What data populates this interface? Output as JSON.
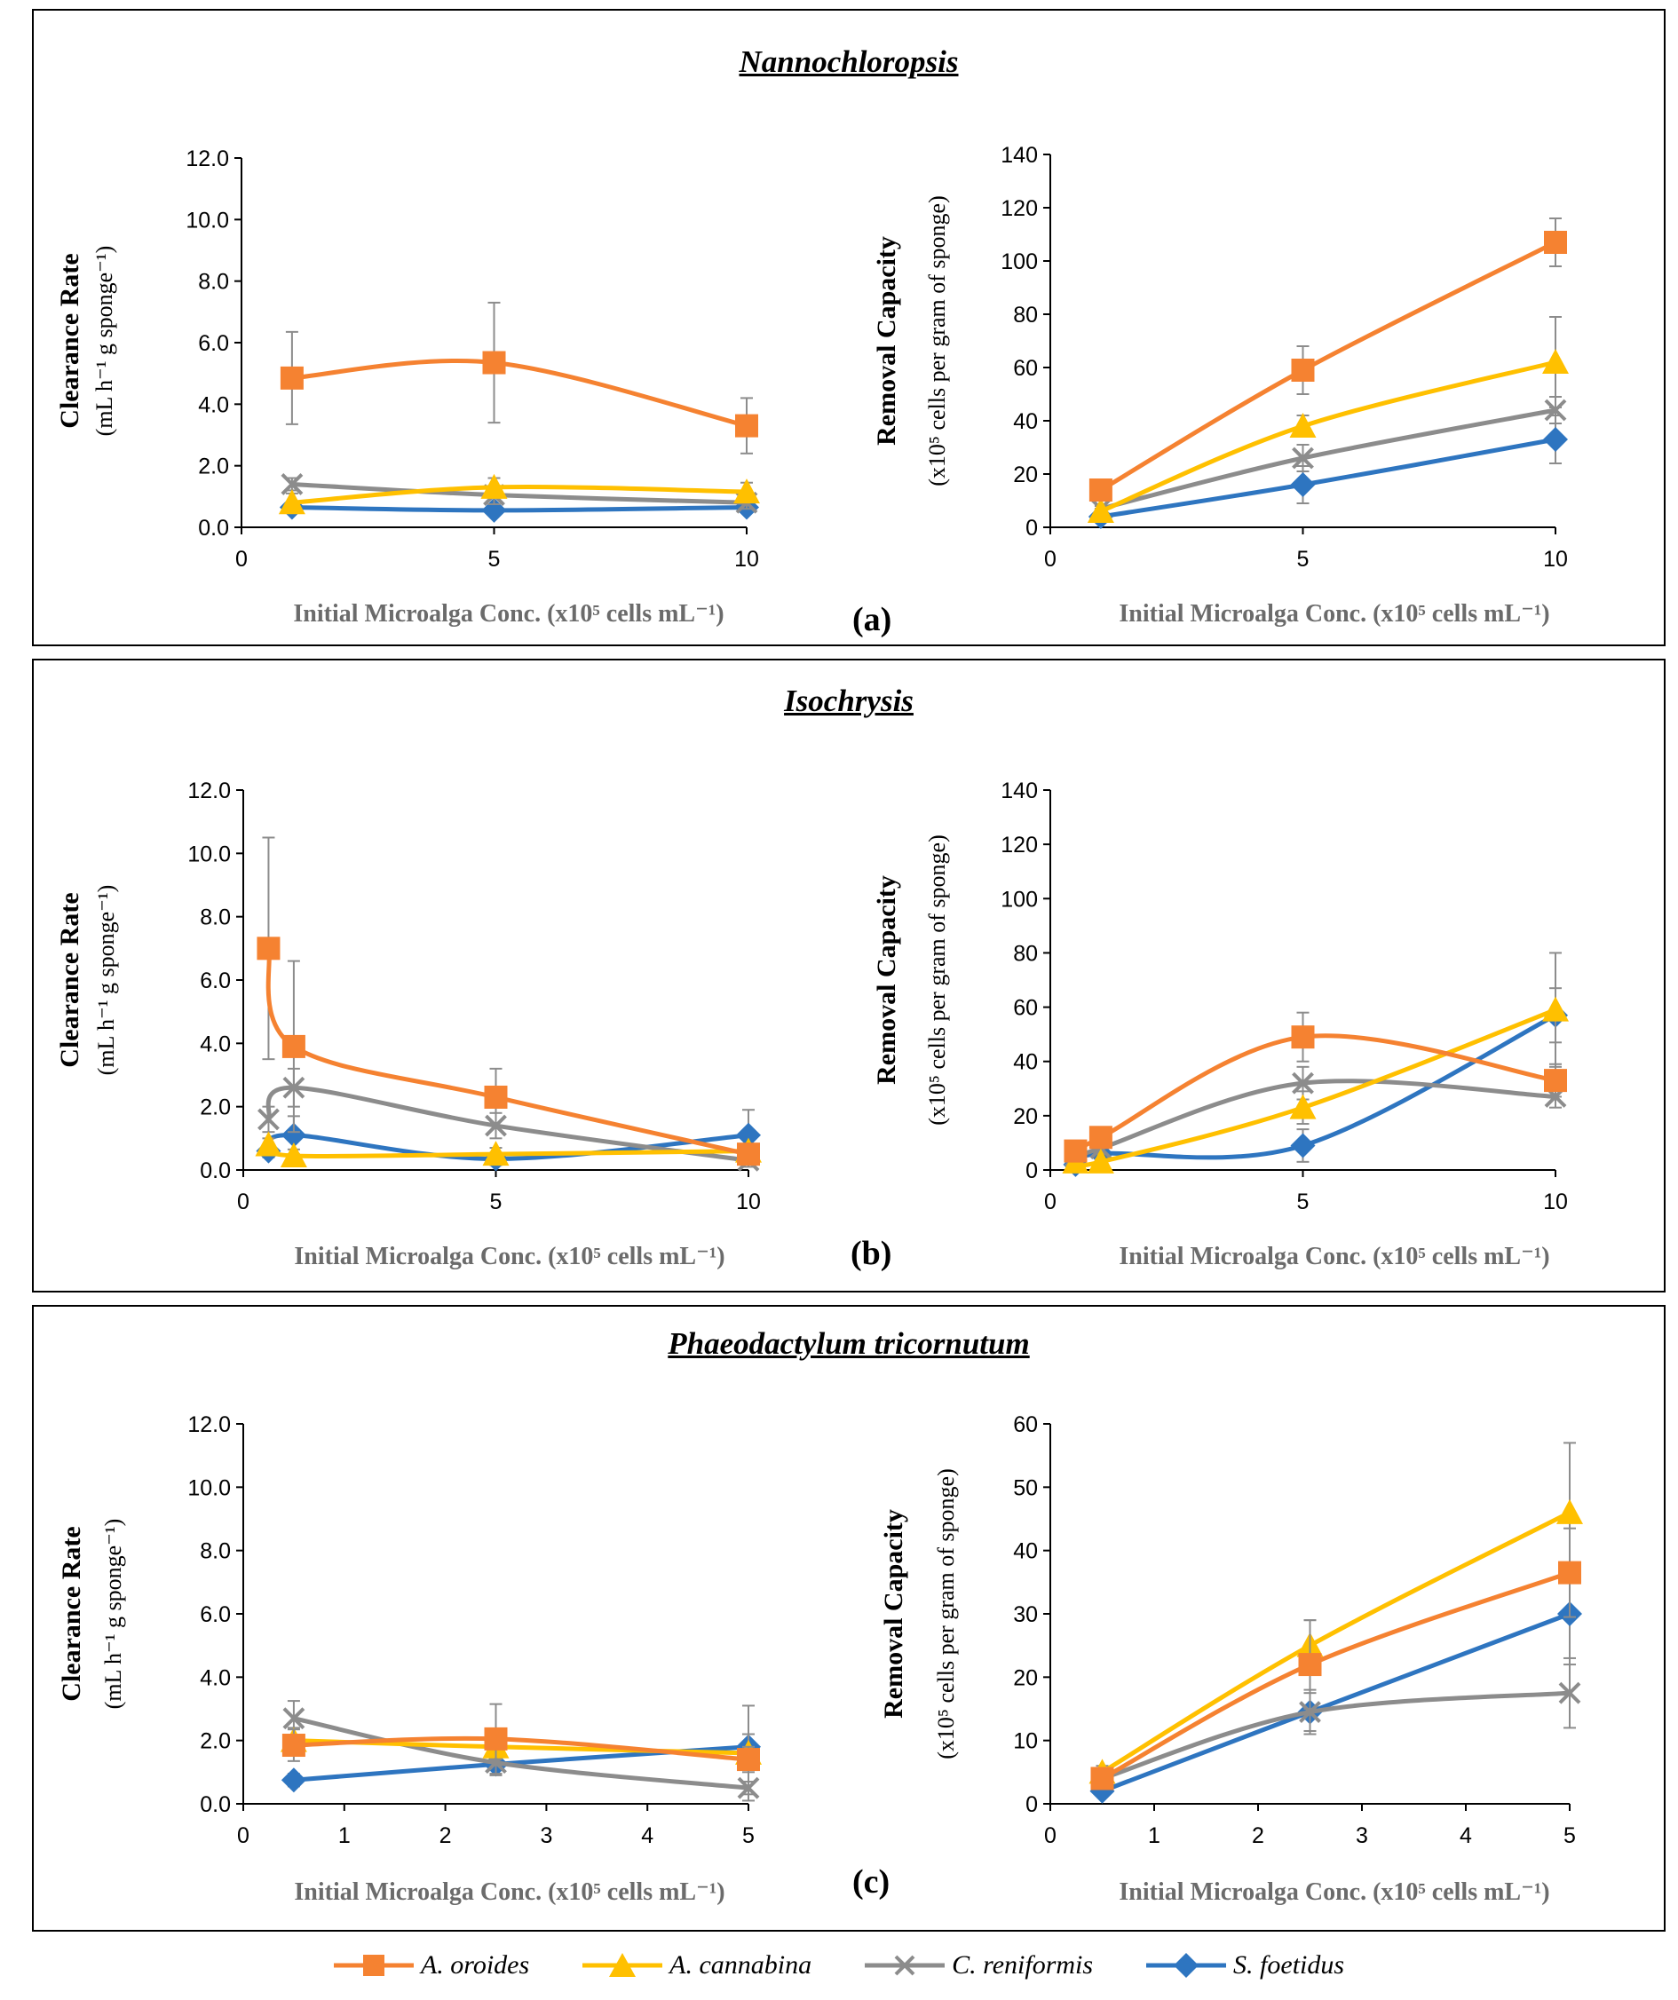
{
  "colors": {
    "A. oroides": "#f58231",
    "A. cannabina": "#ffc000",
    "C. reniformis": "#8c8c8c",
    "S. foetidus": "#2e75c0"
  },
  "markers": {
    "A. oroides": "square",
    "A. cannabina": "triangle",
    "C. reniformis": "x",
    "S. foetidus": "diamond"
  },
  "legend": [
    "A. oroides",
    "A. cannabina",
    "C. reniformis",
    "S. foetidus"
  ],
  "panels": [
    {
      "title": "Nannochloropsis",
      "letter": "(a)"
    },
    {
      "title": "Isochrysis",
      "letter": "(b)"
    },
    {
      "title": "Phaeodactylum tricornutum",
      "letter": "(c)"
    }
  ],
  "chart_data": [
    {
      "id": "a-clearance",
      "type": "line",
      "panel": "(a)",
      "ylabel": [
        "Clearance Rate",
        "(mL h⁻¹ g sponge⁻¹)"
      ],
      "xlabel": "Initial Microalga Conc. (x10⁵ cells mL⁻¹)",
      "xlim": [
        0,
        10
      ],
      "xticks": [
        0,
        5,
        10
      ],
      "ylim": [
        0,
        12
      ],
      "yticks": [
        "0.0",
        "2.0",
        "4.0",
        "6.0",
        "8.0",
        "10.0",
        "12.0"
      ],
      "x": [
        1,
        5,
        10
      ],
      "series": [
        {
          "name": "A. oroides",
          "values": [
            4.85,
            5.35,
            3.3
          ],
          "err": [
            1.5,
            1.95,
            0.9
          ]
        },
        {
          "name": "A. cannabina",
          "values": [
            0.8,
            1.3,
            1.15
          ],
          "err": [
            0.3,
            0.3,
            0.3
          ]
        },
        {
          "name": "C. reniformis",
          "values": [
            1.4,
            1.05,
            0.8
          ],
          "err": [
            0.2,
            0.3,
            0.2
          ]
        },
        {
          "name": "S. foetidus",
          "values": [
            0.65,
            0.55,
            0.65
          ],
          "err": [
            0.15,
            0.15,
            0.15
          ]
        }
      ]
    },
    {
      "id": "a-removal",
      "type": "line",
      "panel": "(a)",
      "ylabel": [
        "Removal Capacity",
        "(x10⁵ cells per gram of sponge)"
      ],
      "xlabel": "Initial Microalga Conc. (x10⁵ cells mL⁻¹)",
      "xlim": [
        0,
        10
      ],
      "xticks": [
        0,
        5,
        10
      ],
      "ylim": [
        0,
        140
      ],
      "yticks": [
        "0",
        "20",
        "40",
        "60",
        "80",
        "100",
        "120",
        "140"
      ],
      "x": [
        1,
        5,
        10
      ],
      "series": [
        {
          "name": "A. oroides",
          "values": [
            14,
            59,
            107
          ],
          "err": [
            1.5,
            9,
            9
          ]
        },
        {
          "name": "A. cannabina",
          "values": [
            6,
            38,
            62
          ],
          "err": [
            1,
            4,
            17
          ]
        },
        {
          "name": "C. reniformis",
          "values": [
            7,
            26,
            44
          ],
          "err": [
            1,
            5,
            5
          ]
        },
        {
          "name": "S. foetidus",
          "values": [
            4,
            16,
            33
          ],
          "err": [
            1,
            7,
            9
          ]
        }
      ]
    },
    {
      "id": "b-clearance",
      "type": "line",
      "panel": "(b)",
      "ylabel": [
        "Clearance Rate",
        "(mL h⁻¹ g sponge⁻¹)"
      ],
      "xlabel": "Initial Microalga Conc. (x10⁵ cells mL⁻¹)",
      "xlim": [
        0,
        10
      ],
      "xticks": [
        0,
        5,
        10
      ],
      "ylim": [
        0,
        12
      ],
      "yticks": [
        "0.0",
        "2.0",
        "4.0",
        "6.0",
        "8.0",
        "10.0",
        "12.0"
      ],
      "x": [
        0.5,
        1,
        5,
        10
      ],
      "series": [
        {
          "name": "A. oroides",
          "values": [
            7.0,
            3.9,
            2.3,
            0.5
          ],
          "err": [
            3.5,
            2.7,
            0.9,
            0.2
          ]
        },
        {
          "name": "A. cannabina",
          "values": [
            0.8,
            0.45,
            0.5,
            0.6
          ],
          "err": [
            0.2,
            0.2,
            0.2,
            0.2
          ]
        },
        {
          "name": "C. reniformis",
          "values": [
            1.6,
            2.6,
            1.4,
            0.3
          ],
          "err": [
            0.4,
            0.6,
            0.4,
            0.2
          ]
        },
        {
          "name": "S. foetidus",
          "values": [
            0.6,
            1.1,
            0.35,
            1.1
          ],
          "err": [
            0.2,
            0.6,
            0.2,
            0.8
          ]
        }
      ]
    },
    {
      "id": "b-removal",
      "type": "line",
      "panel": "(b)",
      "ylabel": [
        "Removal Capacity",
        "(x10⁵ cells per gram of sponge)"
      ],
      "xlabel": "Initial Microalga Conc. (x10⁵ cells mL⁻¹)",
      "xlim": [
        0,
        10
      ],
      "xticks": [
        0,
        5,
        10
      ],
      "ylim": [
        0,
        140
      ],
      "yticks": [
        "0",
        "20",
        "40",
        "60",
        "80",
        "100",
        "120",
        "140"
      ],
      "x": [
        0.5,
        1,
        5,
        10
      ],
      "series": [
        {
          "name": "A. oroides",
          "values": [
            7,
            12,
            49,
            33
          ],
          "err": [
            1,
            2,
            9,
            6
          ]
        },
        {
          "name": "A. cannabina",
          "values": [
            3,
            3,
            23,
            59
          ],
          "err": [
            1,
            1,
            6,
            21
          ]
        },
        {
          "name": "C. reniformis",
          "values": [
            5,
            8,
            32,
            27
          ],
          "err": [
            1,
            2,
            6,
            4
          ]
        },
        {
          "name": "S. foetidus",
          "values": [
            2,
            6,
            9,
            57
          ],
          "err": [
            1,
            1,
            6,
            10
          ]
        }
      ]
    },
    {
      "id": "c-clearance",
      "type": "line",
      "panel": "(c)",
      "ylabel": [
        "Clearance Rate",
        "(mL h⁻¹ g sponge⁻¹)"
      ],
      "xlabel": "Initial Microalga Conc. (x10⁵ cells mL⁻¹)",
      "xlim": [
        0,
        5
      ],
      "xticks": [
        0,
        1,
        2,
        3,
        4,
        5
      ],
      "ylim": [
        0,
        12
      ],
      "yticks": [
        "0.0",
        "2.0",
        "4.0",
        "6.0",
        "8.0",
        "10.0",
        "12.0"
      ],
      "x": [
        0.5,
        2.5,
        5
      ],
      "series": [
        {
          "name": "A. oroides",
          "values": [
            1.85,
            2.05,
            1.4
          ],
          "err": [
            0.5,
            1.1,
            0.4
          ]
        },
        {
          "name": "A. cannabina",
          "values": [
            2.0,
            1.8,
            1.6
          ],
          "err": [
            0.4,
            0.4,
            1.5
          ]
        },
        {
          "name": "C. reniformis",
          "values": [
            2.7,
            1.3,
            0.5
          ],
          "err": [
            0.55,
            0.4,
            0.2
          ]
        },
        {
          "name": "S. foetidus",
          "values": [
            0.75,
            1.25,
            1.8
          ],
          "err": [
            0.2,
            0.3,
            0.4
          ]
        }
      ]
    },
    {
      "id": "c-removal",
      "type": "line",
      "panel": "(c)",
      "ylabel": [
        "Removal Capacity",
        "(x10⁵ cells per gram of sponge)"
      ],
      "xlabel": "Initial Microalga Conc. (x10⁵ cells mL⁻¹)",
      "xlim": [
        0,
        5
      ],
      "xticks": [
        0,
        1,
        2,
        3,
        4,
        5
      ],
      "ylim": [
        0,
        60
      ],
      "yticks": [
        "0",
        "10",
        "20",
        "30",
        "40",
        "50",
        "60"
      ],
      "x": [
        0.5,
        2.5,
        5
      ],
      "series": [
        {
          "name": "A. oroides",
          "values": [
            4,
            22,
            36.5
          ],
          "err": [
            1,
            7,
            7
          ]
        },
        {
          "name": "A. cannabina",
          "values": [
            5,
            25,
            46
          ],
          "err": [
            1,
            4,
            11
          ]
        },
        {
          "name": "C. reniformis",
          "values": [
            4,
            14.5,
            17.5
          ],
          "err": [
            1,
            3.5,
            5.5
          ]
        },
        {
          "name": "S. foetidus",
          "values": [
            2,
            14.5,
            30
          ],
          "err": [
            0.5,
            3,
            8
          ]
        }
      ]
    }
  ]
}
